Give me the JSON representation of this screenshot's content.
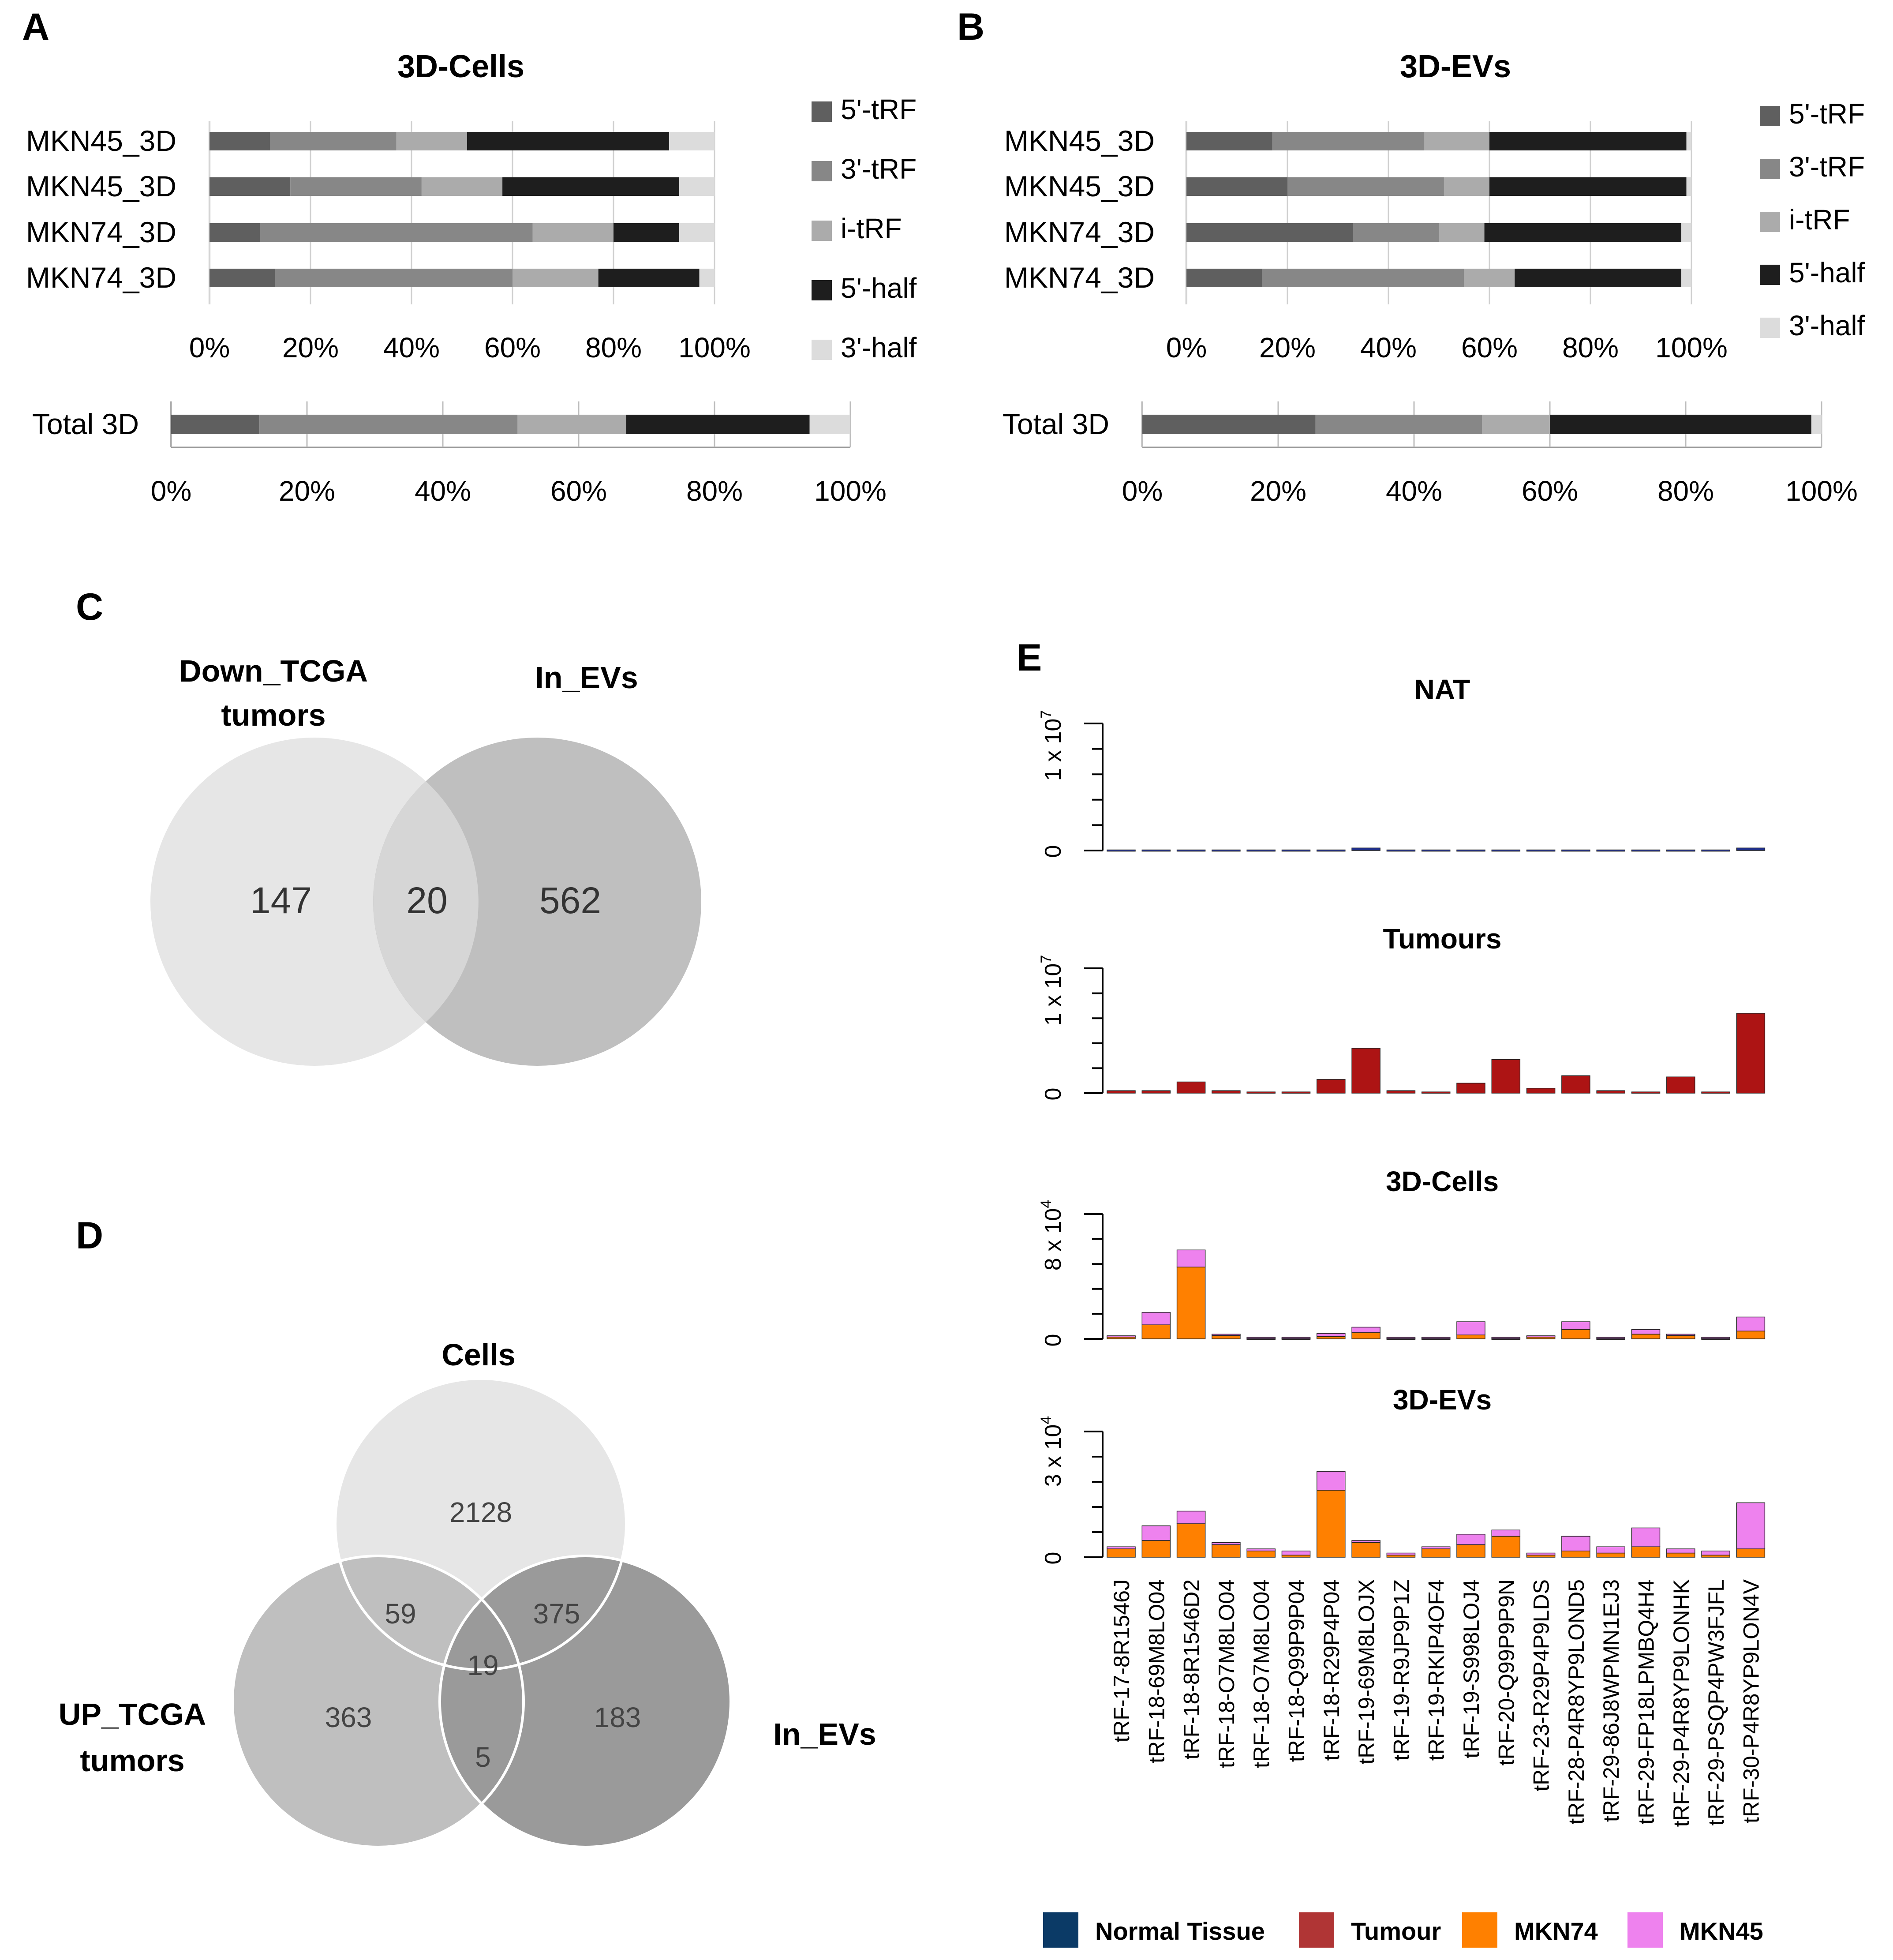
{
  "panel_labels": {
    "a": "A",
    "b": "B",
    "c": "C",
    "d": "D",
    "e": "E"
  },
  "colors": {
    "trf5": "#5f5f5f",
    "trf3": "#878787",
    "itrf": "#ababab",
    "half5": "#1e1e1e",
    "half3": "#dcdcdc",
    "normal": "#1f2f8c",
    "tumour": "#ad1414",
    "mkn74": "#ff8000",
    "mkn45": "#ee82ee",
    "legend_normal": "#0b3a66",
    "legend_tumour": "#b03535",
    "venn_light": "#e6e6e6",
    "venn_mid": "#bfbfbf",
    "venn_dark": "#9a9a9a"
  },
  "chart_data": [
    {
      "id": "A",
      "type": "bar",
      "orientation": "horizontal",
      "stacked": true,
      "percent": true,
      "title": "3D-Cells",
      "categories": [
        "MKN45_3D",
        "MKN45_3D",
        "MKN74_3D",
        "MKN74_3D"
      ],
      "series": [
        {
          "name": "5'-tRF",
          "values": [
            12,
            16,
            10,
            13
          ]
        },
        {
          "name": "3'-tRF",
          "values": [
            25,
            26,
            54,
            47
          ]
        },
        {
          "name": "i-tRF",
          "values": [
            14,
            16,
            16,
            17
          ]
        },
        {
          "name": "5'-half",
          "values": [
            40,
            35,
            13,
            20
          ]
        },
        {
          "name": "3'-half",
          "values": [
            9,
            7,
            7,
            3
          ]
        }
      ],
      "ticks": [
        "0%",
        "20%",
        "40%",
        "60%",
        "80%",
        "100%"
      ],
      "legend": "right",
      "total": {
        "label": "Total 3D",
        "values": [
          13,
          38,
          16,
          27,
          6
        ]
      }
    },
    {
      "id": "B",
      "type": "bar",
      "orientation": "horizontal",
      "stacked": true,
      "percent": true,
      "title": "3D-EVs",
      "categories": [
        "MKN45_3D",
        "MKN45_3D",
        "MKN74_3D",
        "MKN74_3D"
      ],
      "series": [
        {
          "name": "5'-tRF",
          "values": [
            17,
            20,
            33,
            15
          ]
        },
        {
          "name": "3'-tRF",
          "values": [
            30,
            31,
            17,
            40
          ]
        },
        {
          "name": "i-tRF",
          "values": [
            13,
            9,
            9,
            10
          ]
        },
        {
          "name": "5'-half",
          "values": [
            39,
            39,
            39,
            33
          ]
        },
        {
          "name": "3'-half",
          "values": [
            1,
            1,
            2,
            2
          ]
        }
      ],
      "ticks": [
        "0%",
        "20%",
        "40%",
        "60%",
        "80%",
        "100%"
      ],
      "legend": "right",
      "total": {
        "label": "Total 3D",
        "values": [
          25.5,
          24.5,
          10,
          38.5,
          1.5
        ]
      }
    },
    {
      "id": "E",
      "type": "bar",
      "stacked": true,
      "categories": [
        "tRF-17-8R1546J",
        "tRF-18-69M8LO04",
        "tRF-18-8R1546D2",
        "tRF-18-O7M8LO04",
        "tRF-18-O7M8LO04",
        "tRF-18-Q99P9P04",
        "tRF-18-R29P4P04",
        "tRF-19-69M8LOJX",
        "tRF-19-R9JP9P1Z",
        "tRF-19-RKIP4OF4",
        "tRF-19-S998LOJ4",
        "tRF-20-Q99P9P9N",
        "tRF-23-R29P4P9LDS",
        "tRF-28-P4R8YP9LOND5",
        "tRF-29-86J8WPMN1EJ3",
        "tRF-29-FP18LPMBQ4H4",
        "tRF-29-P4R8YP9LONHK",
        "tRF-29-PSQP4PW3FJFL",
        "tRF-30-P4R8YP9LON4V"
      ],
      "legend": "bottom",
      "legend_entries": [
        "Normal Tissue",
        "Tumour",
        "MKN74",
        "MKN45"
      ],
      "panels": [
        {
          "title": "NAT",
          "ymax_label": "1 x 10",
          "exp": "7",
          "ylim": [
            0,
            10000000
          ],
          "ymax": 10000000,
          "series": [
            {
              "name": "Normal Tissue",
              "values": [
                50000,
                50000,
                50000,
                50000,
                50000,
                50000,
                50000,
                200000,
                50000,
                50000,
                50000,
                50000,
                50000,
                50000,
                50000,
                50000,
                50000,
                50000,
                200000
              ]
            }
          ]
        },
        {
          "title": "Tumours",
          "ymax_label": "1 x 10",
          "exp": "7",
          "ylim": [
            0,
            10000000
          ],
          "ymax": 10000000,
          "series": [
            {
              "name": "Tumour",
              "values": [
                200000,
                200000,
                900000,
                200000,
                100000,
                100000,
                1100000,
                3600000,
                200000,
                100000,
                800000,
                2700000,
                400000,
                1400000,
                200000,
                100000,
                1300000,
                100000,
                6400000
              ]
            }
          ]
        },
        {
          "title": "3D-Cells",
          "ymax_label": "8 x 10",
          "exp": "4",
          "ylim": [
            0,
            80000
          ],
          "ymax": 80000,
          "series": [
            {
              "name": "MKN74",
              "values": [
                1500,
                9000,
                46000,
                2500,
                500,
                500,
                1500,
                4000,
                500,
                500,
                2500,
                500,
                1500,
                6000,
                500,
                3000,
                2500,
                500,
                5000
              ]
            },
            {
              "name": "MKN45",
              "values": [
                500,
                8000,
                11000,
                500,
                500,
                500,
                2000,
                3500,
                500,
                500,
                8500,
                500,
                500,
                5000,
                500,
                3000,
                500,
                500,
                9000
              ]
            }
          ]
        },
        {
          "title": "3D-EVs",
          "ymax_label": "3 x 10",
          "exp": "4",
          "ylim": [
            0,
            30000
          ],
          "ymax": 30000,
          "series": [
            {
              "name": "MKN74",
              "values": [
                2000,
                4000,
                8000,
                3000,
                1500,
                500,
                16000,
                3500,
                500,
                2000,
                3000,
                5000,
                500,
                1500,
                1000,
                2500,
                1000,
                500,
                2000
              ]
            },
            {
              "name": "MKN45",
              "values": [
                500,
                3500,
                3000,
                500,
                500,
                1000,
                4500,
                500,
                500,
                500,
                2500,
                1500,
                500,
                3500,
                1500,
                4500,
                1000,
                1000,
                11000
              ]
            }
          ]
        }
      ]
    }
  ],
  "venn_c": {
    "set1": "Down_TCGA",
    "set1b": "tumors",
    "set2": "In_EVs",
    "only1": "147",
    "both": "20",
    "only2": "562"
  },
  "venn_d": {
    "set_top": "Cells",
    "set_left": "UP_TCGA",
    "set_left_b": "tumors",
    "set_right": "In_EVs",
    "v_top": "2128",
    "v_top_left": "59",
    "v_top_right": "375",
    "v_center": "19",
    "v_left": "363",
    "v_right": "183",
    "v_left_right": "5"
  }
}
